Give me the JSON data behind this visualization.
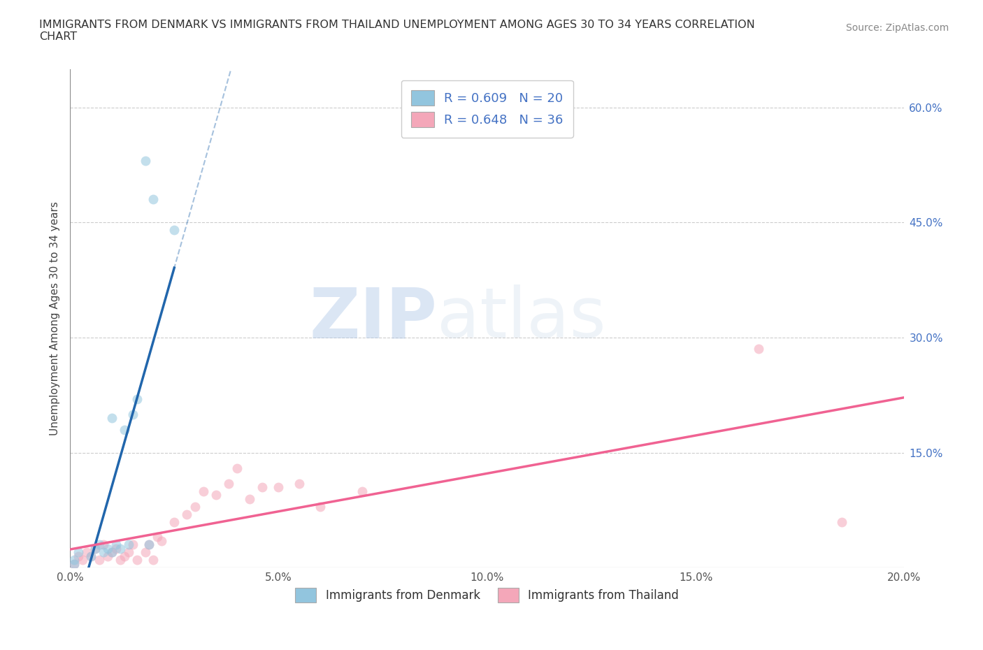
{
  "title": "IMMIGRANTS FROM DENMARK VS IMMIGRANTS FROM THAILAND UNEMPLOYMENT AMONG AGES 30 TO 34 YEARS CORRELATION\nCHART",
  "source": "Source: ZipAtlas.com",
  "ylabel": "Unemployment Among Ages 30 to 34 years",
  "xlim": [
    0.0,
    0.2
  ],
  "ylim": [
    0.0,
    0.65
  ],
  "xticks": [
    0.0,
    0.05,
    0.1,
    0.15,
    0.2
  ],
  "yticks_right": [
    0.15,
    0.3,
    0.45,
    0.6
  ],
  "denmark_color": "#92C5DE",
  "thailand_color": "#F4A7B9",
  "denmark_line_color": "#2166AC",
  "thailand_line_color": "#F06292",
  "denmark_R": 0.609,
  "denmark_N": 20,
  "thailand_R": 0.648,
  "thailand_N": 36,
  "denmark_x": [
    0.001,
    0.001,
    0.002,
    0.005,
    0.006,
    0.007,
    0.008,
    0.009,
    0.01,
    0.01,
    0.011,
    0.012,
    0.013,
    0.014,
    0.015,
    0.016,
    0.018,
    0.019,
    0.02,
    0.025
  ],
  "denmark_y": [
    0.005,
    0.01,
    0.02,
    0.015,
    0.025,
    0.03,
    0.02,
    0.025,
    0.02,
    0.195,
    0.03,
    0.025,
    0.18,
    0.03,
    0.2,
    0.22,
    0.53,
    0.03,
    0.48,
    0.44
  ],
  "thailand_x": [
    0.001,
    0.002,
    0.003,
    0.004,
    0.005,
    0.006,
    0.007,
    0.008,
    0.009,
    0.01,
    0.011,
    0.012,
    0.013,
    0.014,
    0.015,
    0.016,
    0.018,
    0.019,
    0.02,
    0.021,
    0.022,
    0.025,
    0.028,
    0.03,
    0.032,
    0.035,
    0.038,
    0.04,
    0.043,
    0.046,
    0.05,
    0.055,
    0.06,
    0.07,
    0.165,
    0.185
  ],
  "thailand_y": [
    0.005,
    0.015,
    0.01,
    0.02,
    0.015,
    0.025,
    0.01,
    0.03,
    0.015,
    0.02,
    0.025,
    0.01,
    0.015,
    0.02,
    0.03,
    0.01,
    0.02,
    0.03,
    0.01,
    0.04,
    0.035,
    0.06,
    0.07,
    0.08,
    0.1,
    0.095,
    0.11,
    0.13,
    0.09,
    0.105,
    0.105,
    0.11,
    0.08,
    0.1,
    0.285,
    0.06
  ],
  "watermark_zip": "ZIP",
  "watermark_atlas": "atlas",
  "background_color": "#FFFFFF",
  "grid_color": "#CCCCCC",
  "dot_size": 100,
  "dot_alpha": 0.55
}
